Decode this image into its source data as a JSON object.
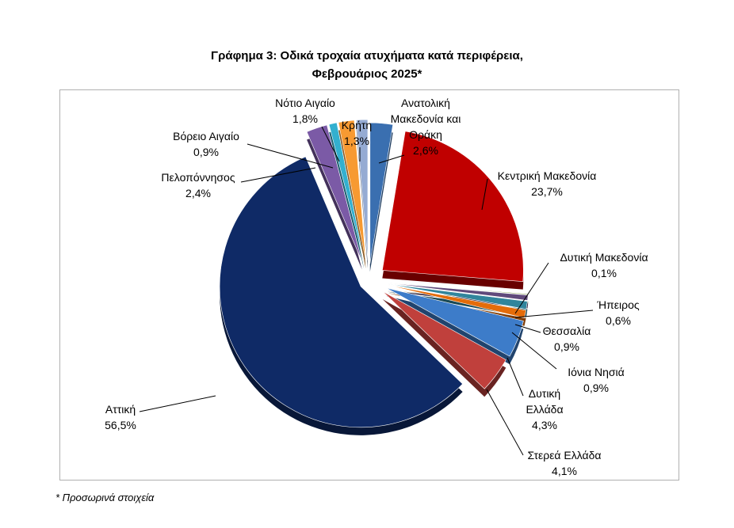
{
  "chart_data": {
    "type": "pie",
    "title_line1": "Γράφημα 3: Οδικά τροχαία ατυχήματα κατά περιφέρεια,",
    "title_line2": "Φεβρουάριος 2025*",
    "slices": [
      {
        "label": "Ανατολική Μακεδονία και Θράκη",
        "value": 2.6,
        "value_label": "2,6%",
        "color": "#3a6fb0"
      },
      {
        "label": "Κεντρική Μακεδονία",
        "value": 23.7,
        "value_label": "23,7%",
        "color": "#c00000"
      },
      {
        "label": "Δυτική Μακεδονία",
        "value": 0.1,
        "value_label": "0,1%",
        "color": "#77933c"
      },
      {
        "label": "Ήπειρος",
        "value": 0.6,
        "value_label": "0,6%",
        "color": "#604a7b"
      },
      {
        "label": "Θεσσαλία",
        "value": 0.9,
        "value_label": "0,9%",
        "color": "#31859c"
      },
      {
        "label": "Ιόνια Νησιά",
        "value": 0.9,
        "value_label": "0,9%",
        "color": "#e46c0a"
      },
      {
        "label": "Δυτική Ελλάδα",
        "value": 4.3,
        "value_label": "4,3%",
        "color": "#3d7cc9"
      },
      {
        "label": "Στερεά Ελλάδα",
        "value": 4.1,
        "value_label": "4,1%",
        "color": "#c0403c"
      },
      {
        "label": "Αττική",
        "value": 56.5,
        "value_label": "56,5%",
        "color": "#0f2a66"
      },
      {
        "label": "Πελοπόννησος",
        "value": 2.4,
        "value_label": "2,4%",
        "color": "#7b5aa6"
      },
      {
        "label": "Βόρειο Αιγαίο",
        "value": 0.9,
        "value_label": "0,9%",
        "color": "#33b0cf"
      },
      {
        "label": "Νότιο Αιγαίο",
        "value": 1.8,
        "value_label": "1,8%",
        "color": "#f79a32"
      },
      {
        "label": "Κρήτη",
        "value": 1.3,
        "value_label": "1,3%",
        "color": "#95abd3"
      }
    ],
    "footnote": "* Προσωρινά στοιχεία"
  }
}
